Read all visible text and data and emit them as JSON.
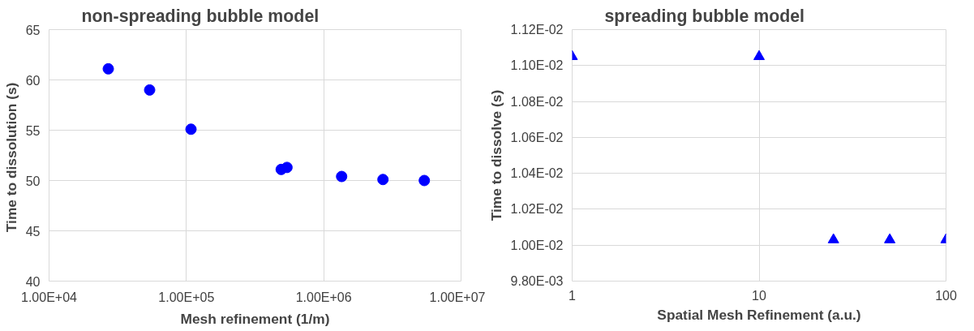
{
  "chart_data": [
    {
      "type": "scatter",
      "title": "non-spreading bubble model",
      "xlabel": "Mesh refinement (1/m)",
      "ylabel": "Time to dissolution  (s)",
      "log": "x",
      "grid": true,
      "marker": "circle",
      "xlim": [
        10000,
        10000000
      ],
      "xticks": [
        {
          "value": 10000,
          "label": "1.00E+04"
        },
        {
          "value": 100000,
          "label": "1.00E+05"
        },
        {
          "value": 1000000,
          "label": "1.00E+06"
        },
        {
          "value": 10000000,
          "label": "1.00E+07"
        }
      ],
      "ylim": [
        40,
        65
      ],
      "yticks": [
        40,
        45,
        50,
        55,
        60,
        65
      ],
      "series": [
        {
          "color": "#0000ff",
          "x": [
            27000,
            54000,
            108000,
            490000,
            540000,
            1350000,
            2700000,
            5400000
          ],
          "values": [
            61.1,
            59.0,
            55.1,
            51.1,
            51.3,
            50.4,
            50.1,
            50.0
          ]
        }
      ]
    },
    {
      "type": "scatter",
      "title": "spreading bubble model",
      "xlabel": "Spatial Mesh Refinement (a.u.)",
      "ylabel": "Time to dissolve (s)",
      "log": "x",
      "grid": true,
      "marker": "triangle",
      "xlim": [
        1,
        100
      ],
      "xticks": [
        1,
        10,
        100
      ],
      "ylim": [
        0.0098,
        0.0112
      ],
      "yticks": [
        {
          "value": 0.0098,
          "label": "9.80E-03"
        },
        {
          "value": 0.01,
          "label": "1.00E-02"
        },
        {
          "value": 0.0102,
          "label": "1.02E-02"
        },
        {
          "value": 0.0104,
          "label": "1.04E-02"
        },
        {
          "value": 0.0106,
          "label": "1.06E-02"
        },
        {
          "value": 0.0108,
          "label": "1.08E-02"
        },
        {
          "value": 0.011,
          "label": "1.10E-02"
        },
        {
          "value": 0.0112,
          "label": "1.12E-02"
        }
      ],
      "series": [
        {
          "color": "#0000ff",
          "x": [
            1,
            10,
            25,
            50,
            100
          ],
          "values": [
            0.01105,
            0.01105,
            0.01003,
            0.01003,
            0.01003
          ]
        }
      ]
    }
  ]
}
